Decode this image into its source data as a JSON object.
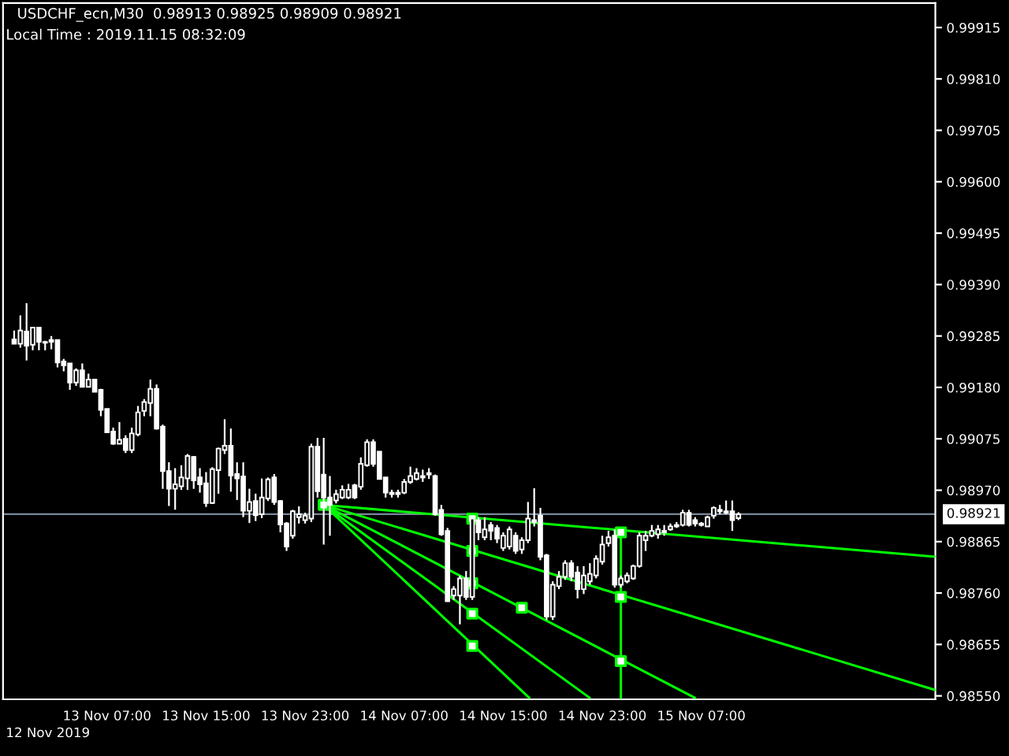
{
  "chart_data": {
    "type": "candlestick",
    "title": "USDCHF_ecn,M30  0.98913 0.98925 0.98909 0.98921",
    "annotations": [
      "Local Time : 2019.11.15 08:32:09",
      "12 Nov 2019"
    ],
    "color": "#ffffff",
    "x": [
      "2019-11-12T23:30",
      "2019-11-13T00:00",
      "2019-11-13T00:30",
      "2019-11-13T01:00",
      "2019-11-13T01:30",
      "2019-11-13T02:00",
      "2019-11-13T02:30",
      "2019-11-13T03:00",
      "2019-11-13T03:30",
      "2019-11-13T04:00",
      "2019-11-13T04:30",
      "2019-11-13T05:00",
      "2019-11-13T05:30",
      "2019-11-13T06:00",
      "2019-11-13T06:30",
      "2019-11-13T07:00",
      "2019-11-13T07:30",
      "2019-11-13T08:00",
      "2019-11-13T08:30",
      "2019-11-13T09:00",
      "2019-11-13T09:30",
      "2019-11-13T10:00",
      "2019-11-13T10:30",
      "2019-11-13T11:00",
      "2019-11-13T11:30",
      "2019-11-13T12:00",
      "2019-11-13T12:30",
      "2019-11-13T13:00",
      "2019-11-13T13:30",
      "2019-11-13T14:00",
      "2019-11-13T14:30",
      "2019-11-13T15:00",
      "2019-11-13T15:30",
      "2019-11-13T16:00",
      "2019-11-13T16:30",
      "2019-11-13T17:00",
      "2019-11-13T17:30",
      "2019-11-13T18:00",
      "2019-11-13T18:30",
      "2019-11-13T19:00",
      "2019-11-13T19:30",
      "2019-11-13T20:00",
      "2019-11-13T20:30",
      "2019-11-13T21:00",
      "2019-11-13T21:30",
      "2019-11-13T22:00",
      "2019-11-13T22:30",
      "2019-11-13T23:00",
      "2019-11-13T23:30",
      "2019-11-14T00:00",
      "2019-11-14T00:30",
      "2019-11-14T01:00",
      "2019-11-14T01:30",
      "2019-11-14T02:00",
      "2019-11-14T02:30",
      "2019-11-14T03:00",
      "2019-11-14T03:30",
      "2019-11-14T04:00",
      "2019-11-14T04:30",
      "2019-11-14T05:00",
      "2019-11-14T05:30",
      "2019-11-14T06:00",
      "2019-11-14T06:30",
      "2019-11-14T07:00",
      "2019-11-14T07:30",
      "2019-11-14T08:00",
      "2019-11-14T08:30",
      "2019-11-14T09:00",
      "2019-11-14T09:30",
      "2019-11-14T10:00",
      "2019-11-14T10:30",
      "2019-11-14T11:00",
      "2019-11-14T11:30",
      "2019-11-14T12:00",
      "2019-11-14T12:30",
      "2019-11-14T13:00",
      "2019-11-14T13:30",
      "2019-11-14T14:00",
      "2019-11-14T14:30",
      "2019-11-14T15:00",
      "2019-11-14T15:30",
      "2019-11-14T16:00",
      "2019-11-14T16:30",
      "2019-11-14T17:00",
      "2019-11-14T17:30",
      "2019-11-14T18:00",
      "2019-11-14T18:30",
      "2019-11-14T19:00",
      "2019-11-14T19:30",
      "2019-11-14T20:00",
      "2019-11-14T20:30",
      "2019-11-14T21:00",
      "2019-11-14T21:30",
      "2019-11-14T22:00",
      "2019-11-14T22:30",
      "2019-11-14T23:00",
      "2019-11-14T23:30",
      "2019-11-15T00:00",
      "2019-11-15T00:30",
      "2019-11-15T01:00",
      "2019-11-15T01:30",
      "2019-11-15T02:00",
      "2019-11-15T02:30",
      "2019-11-15T03:00",
      "2019-11-15T03:30",
      "2019-11-15T04:00",
      "2019-11-15T04:30",
      "2019-11-15T05:00",
      "2019-11-15T05:30",
      "2019-11-15T06:00",
      "2019-11-15T06:30",
      "2019-11-15T07:00",
      "2019-11-15T07:30",
      "2019-11-15T08:00",
      "2019-11-15T08:30",
      "2019-11-15T09:00",
      "2019-11-15T09:30",
      "2019-11-15T10:00"
    ],
    "ohlc": [
      [
        0.99278,
        0.99296,
        0.99269,
        0.99269
      ],
      [
        0.99269,
        0.99327,
        0.99261,
        0.99296
      ],
      [
        0.99294,
        0.99352,
        0.99235,
        0.99265
      ],
      [
        0.99267,
        0.99302,
        0.99256,
        0.99302
      ],
      [
        0.99302,
        0.99302,
        0.99256,
        0.99273
      ],
      [
        0.99273,
        0.99275,
        0.99256,
        0.99271
      ],
      [
        0.99277,
        0.99285,
        0.99258,
        0.99273
      ],
      [
        0.99277,
        0.99277,
        0.99221,
        0.99231
      ],
      [
        0.99233,
        0.99238,
        0.99213,
        0.99225
      ],
      [
        0.99229,
        0.99229,
        0.99175,
        0.9919
      ],
      [
        0.9919,
        0.99219,
        0.99183,
        0.99215
      ],
      [
        0.99215,
        0.99229,
        0.99181,
        0.99181
      ],
      [
        0.99181,
        0.99208,
        0.99181,
        0.99196
      ],
      [
        0.99196,
        0.99196,
        0.99171,
        0.99171
      ],
      [
        0.99175,
        0.99177,
        0.99121,
        0.99134
      ],
      [
        0.99136,
        0.99136,
        0.99088,
        0.99088
      ],
      [
        0.9909,
        0.99098,
        0.99063,
        0.99065
      ],
      [
        0.99065,
        0.99109,
        0.99065,
        0.99073
      ],
      [
        0.99075,
        0.99082,
        0.99046,
        0.99052
      ],
      [
        0.99052,
        0.99098,
        0.99046,
        0.99086
      ],
      [
        0.99084,
        0.99142,
        0.9908,
        0.99129
      ],
      [
        0.99132,
        0.99156,
        0.99121,
        0.9915
      ],
      [
        0.99148,
        0.99196,
        0.99121,
        0.99177
      ],
      [
        0.99177,
        0.99186,
        0.99094,
        0.99096
      ],
      [
        0.991,
        0.99104,
        0.98973,
        0.99009
      ],
      [
        0.99009,
        0.99027,
        0.98938,
        0.98973
      ],
      [
        0.98973,
        0.99015,
        0.9893,
        0.98982
      ],
      [
        0.98978,
        0.99021,
        0.98971,
        0.98996
      ],
      [
        0.98994,
        0.99044,
        0.98971,
        0.9904
      ],
      [
        0.99038,
        0.9904,
        0.98973,
        0.9899
      ],
      [
        0.98996,
        0.99015,
        0.98965,
        0.98982
      ],
      [
        0.98984,
        0.99007,
        0.98936,
        0.98944
      ],
      [
        0.98944,
        0.99017,
        0.98942,
        0.99013
      ],
      [
        0.99011,
        0.99057,
        0.98963,
        0.99055
      ],
      [
        0.99052,
        0.99115,
        0.99044,
        0.99061
      ],
      [
        0.99061,
        0.99096,
        0.98967,
        0.99
      ],
      [
        0.99003,
        0.99027,
        0.9895,
        0.98994
      ],
      [
        0.98998,
        0.99027,
        0.98915,
        0.98928
      ],
      [
        0.98928,
        0.98973,
        0.98903,
        0.98946
      ],
      [
        0.98948,
        0.98963,
        0.98907,
        0.98919
      ],
      [
        0.98921,
        0.98994,
        0.98913,
        0.98955
      ],
      [
        0.98953,
        0.98996,
        0.98948,
        0.98992
      ],
      [
        0.98996,
        0.99003,
        0.9894,
        0.98946
      ],
      [
        0.98948,
        0.9895,
        0.98884,
        0.989
      ],
      [
        0.98902,
        0.98905,
        0.98846,
        0.98855
      ],
      [
        0.98877,
        0.9893,
        0.98871,
        0.98927
      ],
      [
        0.98915,
        0.98937,
        0.98902,
        0.98921
      ],
      [
        0.98909,
        0.98924,
        0.98902,
        0.98918
      ],
      [
        0.98912,
        0.99065,
        0.98905,
        0.99059
      ],
      [
        0.99059,
        0.99077,
        0.98955,
        0.98968
      ],
      [
        0.99002,
        0.99077,
        0.98859,
        0.98955
      ],
      [
        0.98955,
        0.98999,
        0.98877,
        0.9894
      ],
      [
        0.98949,
        0.98971,
        0.98943,
        0.98962
      ],
      [
        0.98955,
        0.9898,
        0.98952,
        0.98971
      ],
      [
        0.98955,
        0.98983,
        0.98952,
        0.98971
      ],
      [
        0.9898,
        0.98983,
        0.98952,
        0.98955
      ],
      [
        0.98977,
        0.99037,
        0.98971,
        0.99024
      ],
      [
        0.99021,
        0.99074,
        0.99018,
        0.99068
      ],
      [
        0.99068,
        0.99074,
        0.99018,
        0.99024
      ],
      [
        0.99049,
        0.99049,
        0.98993,
        0.98993
      ],
      [
        0.98996,
        0.98996,
        0.98955,
        0.98965
      ],
      [
        0.98965,
        0.98971,
        0.98955,
        0.98962
      ],
      [
        0.98965,
        0.98971,
        0.98955,
        0.98962
      ],
      [
        0.98965,
        0.98993,
        0.98962,
        0.98987
      ],
      [
        0.98987,
        0.99018,
        0.98983,
        0.98999
      ],
      [
        0.98993,
        0.99015,
        0.9899,
        0.99005
      ],
      [
        0.98999,
        0.99012,
        0.98987,
        0.98996
      ],
      [
        0.99002,
        0.99015,
        0.98993,
        0.99005
      ],
      [
        0.98999,
        0.99002,
        0.98918,
        0.98921
      ],
      [
        0.9893,
        0.9894,
        0.98877,
        0.9888
      ],
      [
        0.98887,
        0.98893,
        0.98743,
        0.98743
      ],
      [
        0.98755,
        0.98774,
        0.98746,
        0.98768
      ],
      [
        0.98755,
        0.98796,
        0.98696,
        0.9879
      ],
      [
        0.9879,
        0.98805,
        0.98746,
        0.98752
      ],
      [
        0.98752,
        0.98918,
        0.98746,
        0.98912
      ],
      [
        0.98909,
        0.98915,
        0.98868,
        0.98884
      ],
      [
        0.98874,
        0.98915,
        0.98868,
        0.9889
      ],
      [
        0.98899,
        0.98905,
        0.98868,
        0.98887
      ],
      [
        0.98893,
        0.98899,
        0.98862,
        0.98871
      ],
      [
        0.98852,
        0.98884,
        0.98846,
        0.98877
      ],
      [
        0.98855,
        0.98896,
        0.98849,
        0.9889
      ],
      [
        0.98877,
        0.98884,
        0.9884,
        0.98846
      ],
      [
        0.98849,
        0.98874,
        0.9884,
        0.98868
      ],
      [
        0.98868,
        0.98946,
        0.98862,
        0.98912
      ],
      [
        0.98909,
        0.98974,
        0.98896,
        0.98905
      ],
      [
        0.98918,
        0.98934,
        0.98827,
        0.98834
      ],
      [
        0.98837,
        0.9884,
        0.98705,
        0.98712
      ],
      [
        0.98712,
        0.98784,
        0.98705,
        0.98777
      ],
      [
        0.98774,
        0.98805,
        0.98768,
        0.98793
      ],
      [
        0.98793,
        0.98827,
        0.98787,
        0.98821
      ],
      [
        0.98821,
        0.98827,
        0.98784,
        0.98793
      ],
      [
        0.98802,
        0.98815,
        0.98749,
        0.98768
      ],
      [
        0.98768,
        0.98815,
        0.98758,
        0.98796
      ],
      [
        0.98784,
        0.98821,
        0.98777,
        0.98799
      ],
      [
        0.98796,
        0.98837,
        0.9879,
        0.9883
      ],
      [
        0.98824,
        0.98877,
        0.98818,
        0.98859
      ],
      [
        0.98862,
        0.98887,
        0.98855,
        0.98874
      ],
      [
        0.98877,
        0.9889,
        0.98771,
        0.98777
      ],
      [
        0.98777,
        0.98796,
        0.98771,
        0.9879
      ],
      [
        0.98784,
        0.98802,
        0.9878,
        0.98796
      ],
      [
        0.9879,
        0.98818,
        0.98787,
        0.98815
      ],
      [
        0.98815,
        0.98884,
        0.98812,
        0.98877
      ],
      [
        0.98868,
        0.98887,
        0.98846,
        0.98877
      ],
      [
        0.98877,
        0.98899,
        0.98874,
        0.98887
      ],
      [
        0.9888,
        0.98899,
        0.98871,
        0.9889
      ],
      [
        0.98884,
        0.98899,
        0.98877,
        0.98887
      ],
      [
        0.9889,
        0.98902,
        0.98887,
        0.98896
      ],
      [
        0.98896,
        0.98905,
        0.98893,
        0.98899
      ],
      [
        0.98899,
        0.9893,
        0.98896,
        0.98924
      ],
      [
        0.98924,
        0.9893,
        0.98896,
        0.98899
      ],
      [
        0.98909,
        0.98915,
        0.98896,
        0.98902
      ],
      [
        0.98902,
        0.98905,
        0.98896,
        0.98899
      ],
      [
        0.98896,
        0.98918,
        0.98896,
        0.98915
      ],
      [
        0.98918,
        0.98937,
        0.98912,
        0.98934
      ],
      [
        0.98927,
        0.9894,
        0.98921,
        0.9893
      ],
      [
        0.98927,
        0.98949,
        0.98921,
        0.98924
      ],
      [
        0.98927,
        0.98949,
        0.98887,
        0.98909
      ],
      [
        0.98913,
        0.98925,
        0.98909,
        0.98921
      ]
    ],
    "series": [
      {
        "type": "line",
        "color": "#00ff00",
        "x": [
          "2019-11-14T00:30",
          "2019-11-16T01:54"
        ],
        "values": [
          0.9894,
          0.98834
        ]
      },
      {
        "type": "line",
        "color": "#00ff00",
        "x": [
          "2019-11-14T00:30",
          "2019-11-16T01:54"
        ],
        "values": [
          0.9894,
          0.98562
        ]
      },
      {
        "type": "line",
        "color": "#00ff00",
        "x": [
          "2019-11-14T00:30",
          "2019-11-15T06:29"
        ],
        "values": [
          0.9894,
          0.98546
        ]
      },
      {
        "type": "line",
        "color": "#00ff00",
        "x": [
          "2019-11-14T00:30",
          "2019-11-14T21:59"
        ],
        "values": [
          0.9894,
          0.98546
        ]
      },
      {
        "type": "line",
        "color": "#00ff00",
        "x": [
          "2019-11-14T00:30",
          "2019-11-14T17:06"
        ],
        "values": [
          0.9894,
          0.98546
        ]
      },
      {
        "type": "line",
        "color": "#00ff00",
        "x": [
          "2019-11-15T00:30",
          "2019-11-15T00:30"
        ],
        "values": [
          0.98884,
          0.98546
        ]
      },
      {
        "type": "scatter",
        "color": "#00ff00",
        "marker": "square",
        "x": [
          "2019-11-14T00:30",
          "2019-11-14T12:30",
          "2019-11-14T12:30",
          "2019-11-14T12:30",
          "2019-11-14T12:30",
          "2019-11-14T12:30",
          "2019-11-14T16:30",
          "2019-11-15T00:30",
          "2019-11-15T00:30",
          "2019-11-15T00:30"
        ],
        "values": [
          0.9894,
          0.98912,
          0.98846,
          0.9878,
          0.98718,
          0.98652,
          0.9873,
          0.98884,
          0.98752,
          0.98621
        ]
      }
    ],
    "ref_lines": [
      {
        "axis": "y",
        "value": 0.98921,
        "label": "0.98921",
        "color": "#778899"
      }
    ],
    "xlim": [
      "2019-11-12T22:36",
      "2019-11-16T01:54"
    ],
    "xticks": [
      {
        "value": "2019-11-13T07:00",
        "label": "13 Nov 07:00"
      },
      {
        "value": "2019-11-13T15:00",
        "label": "13 Nov 15:00"
      },
      {
        "value": "2019-11-13T23:00",
        "label": "13 Nov 23:00"
      },
      {
        "value": "2019-11-14T07:00",
        "label": "14 Nov 07:00"
      },
      {
        "value": "2019-11-14T15:00",
        "label": "14 Nov 15:00"
      },
      {
        "value": "2019-11-14T23:00",
        "label": "14 Nov 23:00"
      },
      {
        "value": "2019-11-15T07:00",
        "label": "15 Nov 07:00"
      }
    ],
    "ylim": [
      0.98543,
      0.99965
    ],
    "yticks": [
      {
        "value": 0.99915,
        "label": "0.99915"
      },
      {
        "value": 0.9981,
        "label": "0.99810"
      },
      {
        "value": 0.99705,
        "label": "0.99705"
      },
      {
        "value": 0.996,
        "label": "0.99600"
      },
      {
        "value": 0.99495,
        "label": "0.99495"
      },
      {
        "value": 0.9939,
        "label": "0.99390"
      },
      {
        "value": 0.99285,
        "label": "0.99285"
      },
      {
        "value": 0.9918,
        "label": "0.99180"
      },
      {
        "value": 0.99075,
        "label": "0.99075"
      },
      {
        "value": 0.9897,
        "label": "0.98970"
      },
      {
        "value": 0.98865,
        "label": "0.98865"
      },
      {
        "value": 0.9876,
        "label": "0.98760"
      },
      {
        "value": 0.98655,
        "label": "0.98655"
      },
      {
        "value": 0.9855,
        "label": "0.98550"
      }
    ],
    "grid": false,
    "legend": false
  }
}
